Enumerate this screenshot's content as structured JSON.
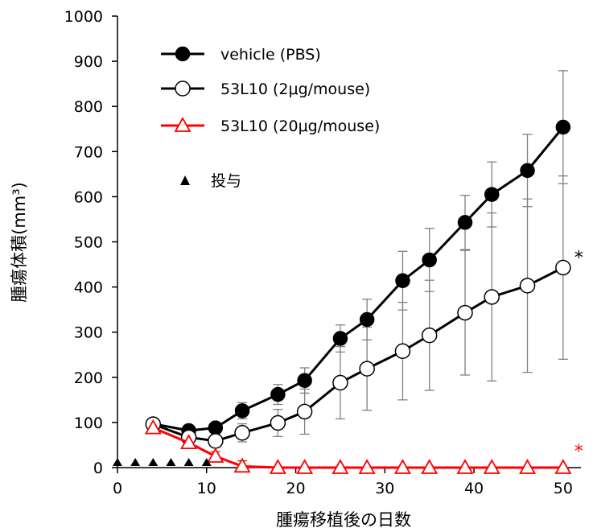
{
  "chart_data": {
    "type": "line",
    "title": "",
    "xlabel": "腫瘍移植後の日数",
    "ylabel": "腫瘍体積(mm³)",
    "xlim": [
      0,
      52
    ],
    "ylim": [
      0,
      1000
    ],
    "xticks": [
      0,
      10,
      20,
      30,
      40,
      50
    ],
    "yticks": [
      0,
      100,
      200,
      300,
      400,
      500,
      600,
      700,
      800,
      900,
      1000
    ],
    "grid": false,
    "legend_position": "top-left",
    "series": [
      {
        "name": "vehicle (PBS)",
        "color": "#000000",
        "marker": "filled-circle",
        "x": [
          4,
          8,
          11,
          14,
          18,
          21,
          25,
          28,
          32,
          35,
          39,
          42,
          46,
          50
        ],
        "y": [
          97,
          82,
          88,
          126,
          162,
          193,
          286,
          328,
          414,
          460,
          543,
          605,
          658,
          754
        ],
        "error": [
          8,
          8,
          8,
          18,
          22,
          28,
          30,
          45,
          65,
          70,
          60,
          72,
          80,
          125
        ]
      },
      {
        "name": "53L10 (2μg/mouse)",
        "color": "#000000",
        "marker": "open-circle",
        "x": [
          4,
          8,
          11,
          14,
          18,
          21,
          25,
          28,
          32,
          35,
          39,
          42,
          46,
          50
        ],
        "y": [
          96,
          67,
          59,
          77,
          99,
          124,
          188,
          219,
          258,
          293,
          343,
          378,
          403,
          443
        ],
        "error": [
          6,
          8,
          8,
          20,
          30,
          50,
          80,
          92,
          108,
          122,
          138,
          186,
          192,
          203
        ]
      },
      {
        "name": "53L10 (20μg/mouse)",
        "color": "#ff0000",
        "marker": "open-triangle",
        "x": [
          4,
          8,
          11,
          14,
          18,
          21,
          25,
          28,
          32,
          35,
          39,
          42,
          46,
          50
        ],
        "y": [
          88,
          55,
          25,
          3,
          0,
          0,
          0,
          0,
          0,
          0,
          0,
          0,
          0,
          0
        ],
        "error": [
          6,
          6,
          10,
          12,
          0,
          0,
          0,
          0,
          0,
          0,
          0,
          0,
          0,
          0
        ]
      }
    ],
    "dosing": {
      "label": "投与",
      "days": [
        0,
        2,
        4,
        6,
        8,
        10
      ]
    },
    "annotations": [
      {
        "text": "*",
        "series": 1,
        "color": "#000000"
      },
      {
        "text": "*",
        "series": 2,
        "color": "#ff0000"
      }
    ]
  }
}
